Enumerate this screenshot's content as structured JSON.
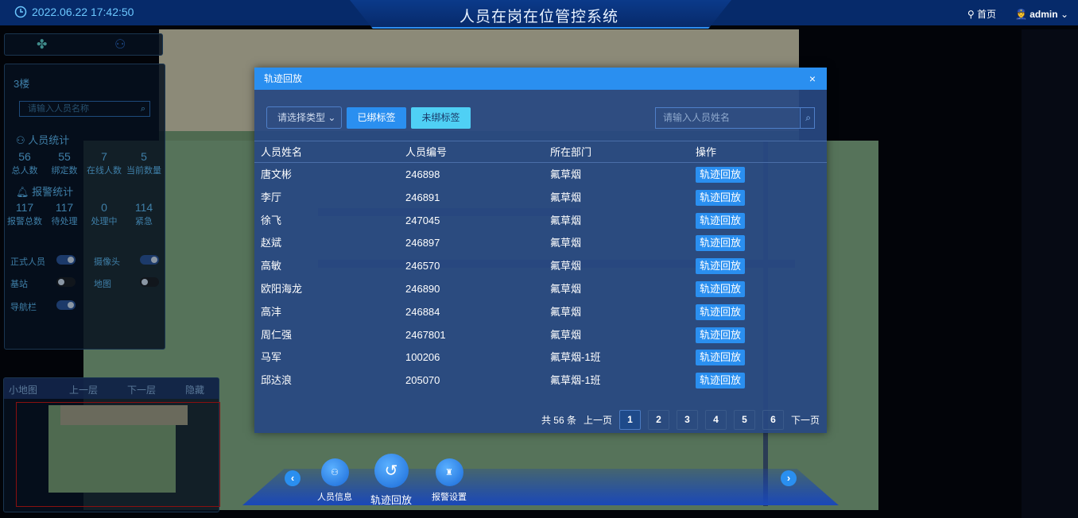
{
  "header": {
    "datetime": "2022.06.22 17:42:50",
    "title": "人员在岗在位管控系统",
    "home": "首页",
    "user": "admin"
  },
  "left_panel": {
    "floor": "3楼",
    "search_placeholder": "请输入人员名称",
    "personnel_title": "人员统计",
    "personnel": [
      {
        "value": "56",
        "label": "总人数"
      },
      {
        "value": "55",
        "label": "绑定数"
      },
      {
        "value": "7",
        "label": "在线人数"
      },
      {
        "value": "5",
        "label": "当前数量"
      }
    ],
    "alarm_title": "报警统计",
    "alarms": [
      {
        "value": "117",
        "label": "报警总数"
      },
      {
        "value": "117",
        "label": "待处理"
      },
      {
        "value": "0",
        "label": "处理中"
      },
      {
        "value": "114",
        "label": "紧急"
      }
    ],
    "toggles": [
      {
        "label": "正式人员",
        "on": true
      },
      {
        "label": "摄像头",
        "on": true
      },
      {
        "label": "基站",
        "on": false
      },
      {
        "label": "地图",
        "on": false
      },
      {
        "label": "导航栏",
        "on": true
      }
    ]
  },
  "minimap": {
    "tabs": [
      "小地图",
      "上一层",
      "下一层",
      "隐藏"
    ]
  },
  "modal": {
    "title": "轨迹回放",
    "close": "×",
    "type_select": "请选择类型",
    "bound_btn": "已绑标签",
    "unbound_btn": "未绑标签",
    "search_placeholder": "请输入人员姓名",
    "columns": [
      "人员姓名",
      "人员编号",
      "所在部门",
      "操作"
    ],
    "rows": [
      {
        "name": "唐文彬",
        "id": "246898",
        "dept": "氟草烟",
        "action": "轨迹回放"
      },
      {
        "name": "李厅",
        "id": "246891",
        "dept": "氟草烟",
        "action": "轨迹回放"
      },
      {
        "name": "徐飞",
        "id": "247045",
        "dept": "氟草烟",
        "action": "轨迹回放"
      },
      {
        "name": "赵斌",
        "id": "246897",
        "dept": "氟草烟",
        "action": "轨迹回放"
      },
      {
        "name": "高敏",
        "id": "246570",
        "dept": "氟草烟",
        "action": "轨迹回放"
      },
      {
        "name": "欧阳海龙",
        "id": "246890",
        "dept": "氟草烟",
        "action": "轨迹回放"
      },
      {
        "name": "高沣",
        "id": "246884",
        "dept": "氟草烟",
        "action": "轨迹回放"
      },
      {
        "name": "周仁强",
        "id": "2467801",
        "dept": "氟草烟",
        "action": "轨迹回放"
      },
      {
        "name": "马军",
        "id": "100206",
        "dept": "氟草烟-1班",
        "action": "轨迹回放"
      },
      {
        "name": "邱达浪",
        "id": "205070",
        "dept": "氟草烟-1班",
        "action": "轨迹回放"
      }
    ],
    "pager": {
      "total": "共 56 条",
      "prev": "上一页",
      "next": "下一页",
      "pages": [
        "1",
        "2",
        "3",
        "4",
        "5",
        "6"
      ],
      "current": "1"
    }
  },
  "bottom_nav": {
    "items": [
      "人员信息",
      "轨迹回放",
      "报警设置"
    ]
  },
  "colors": {
    "accent": "#2a8ff0",
    "header": "#062a6a",
    "unbound": "#4fd0f5"
  }
}
